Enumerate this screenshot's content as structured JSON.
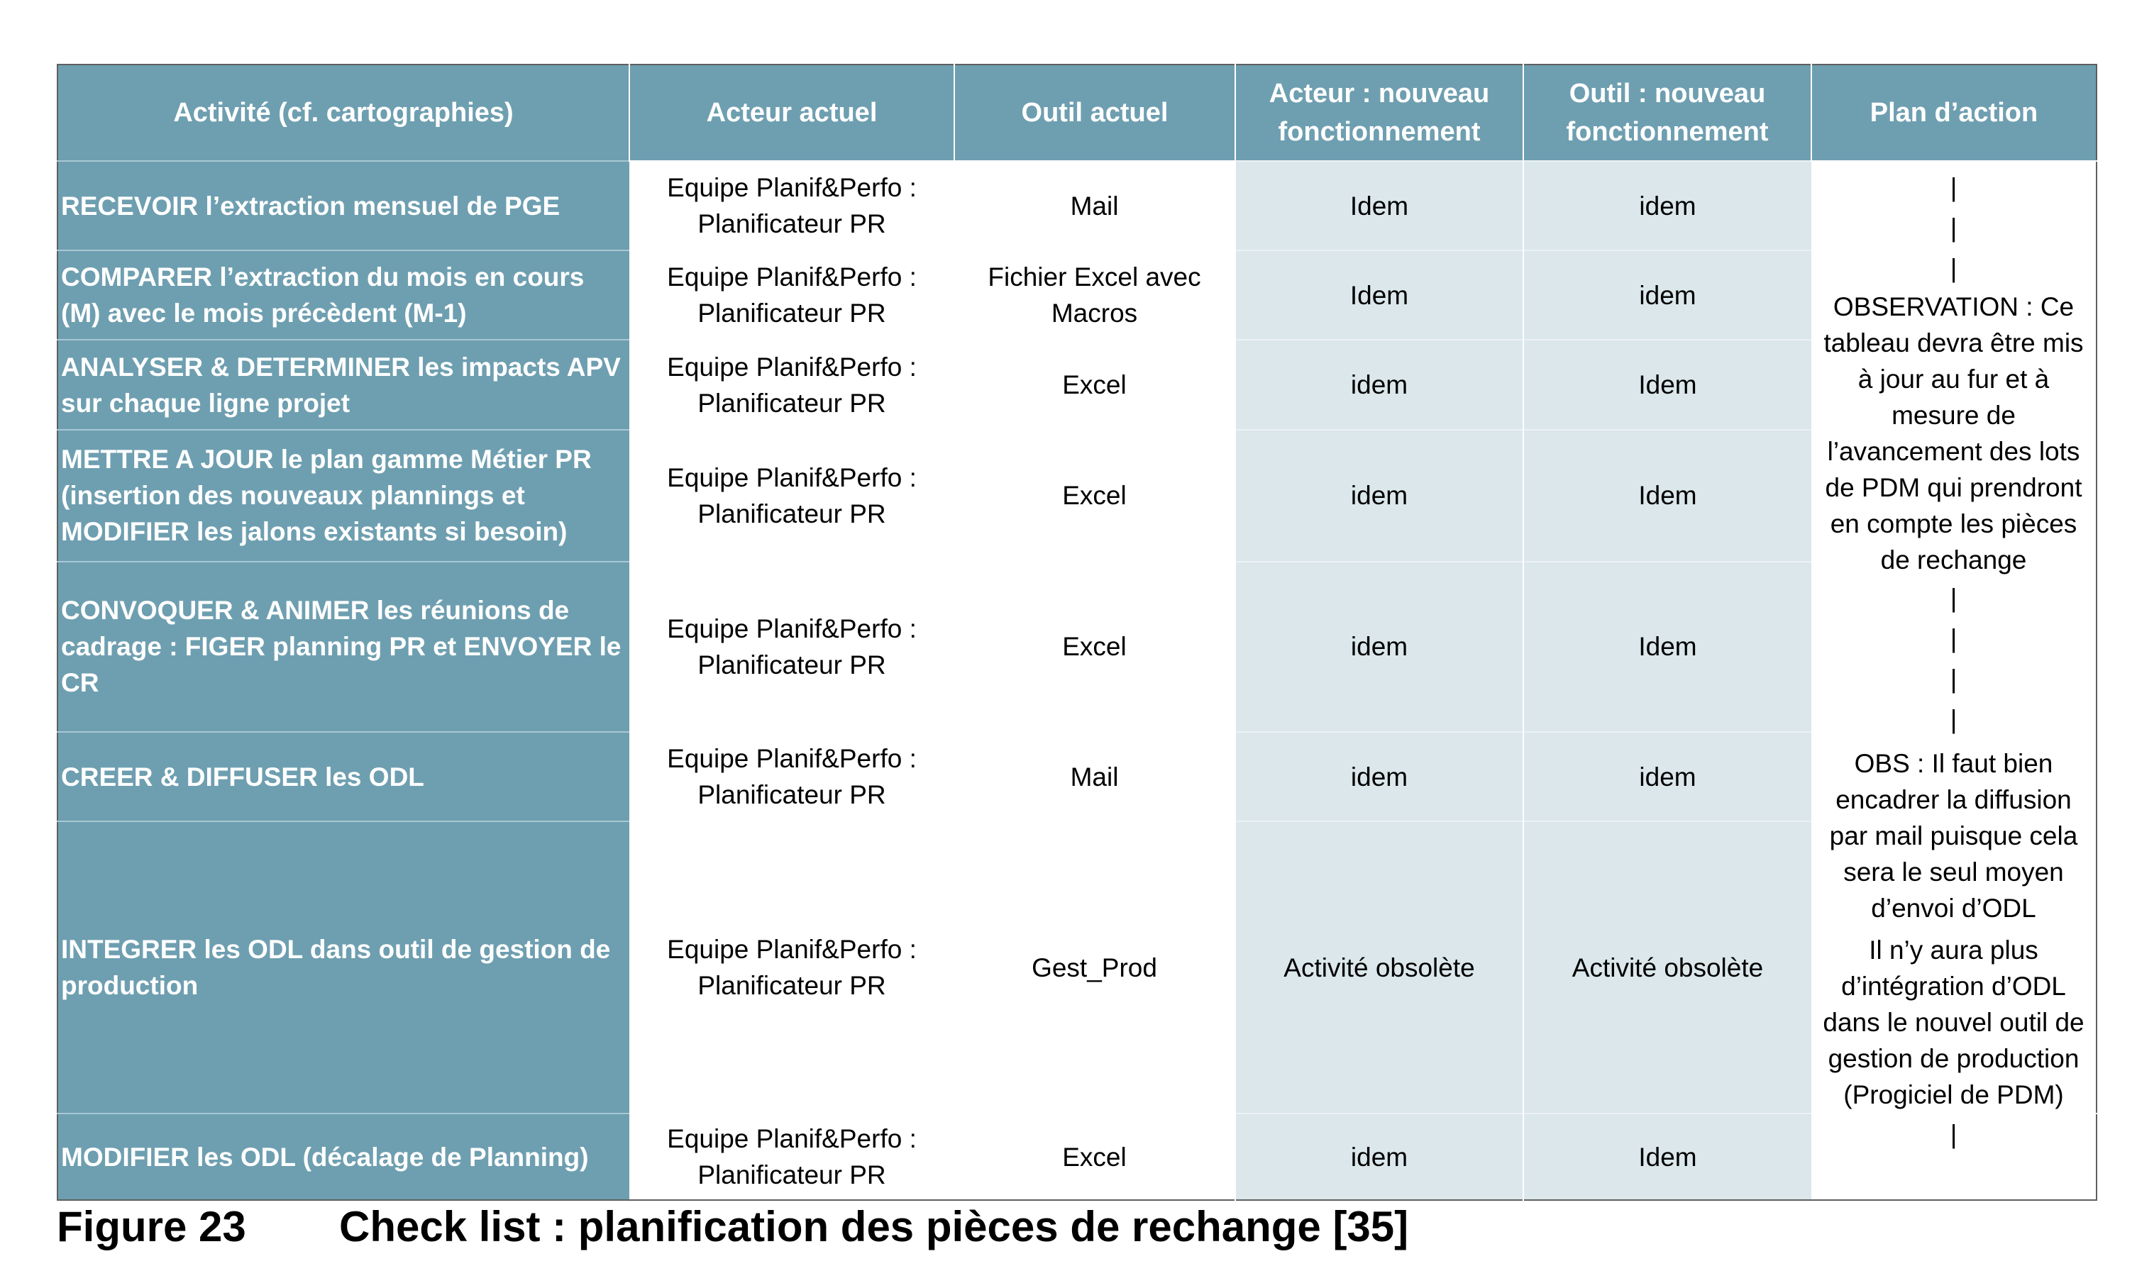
{
  "table": {
    "headers": [
      "Activité  (cf. cartographies)",
      "Acteur  actuel",
      "Outil  actuel",
      "Acteur  : nouveau fonctionnement",
      "Outil  : nouveau fonctionnement",
      "Plan d’action"
    ],
    "rows": [
      {
        "activity": "RECEVOIR l’extraction mensuel de PGE",
        "actor": "Equipe Planif&Perfo : Planificateur PR",
        "tool": "Mail",
        "new_actor": "Idem",
        "new_tool": "idem"
      },
      {
        "activity": "COMPARER l’extraction du mois en cours (M) avec le mois précèdent (M-1)",
        "actor": "Equipe Planif&Perfo : Planificateur PR",
        "tool": "Fichier Excel avec Macros",
        "new_actor": "Idem",
        "new_tool": "idem"
      },
      {
        "activity": "ANALYSER & DETERMINER les impacts APV sur chaque ligne projet",
        "actor": "Equipe Planif&Perfo : Planificateur PR",
        "tool": "Excel",
        "new_actor": "idem",
        "new_tool": "Idem"
      },
      {
        "activity": "METTRE A JOUR le plan gamme Métier PR (insertion des nouveaux plannings et MODIFIER les jalons existants si besoin)",
        "actor": "Equipe Planif&Perfo : Planificateur PR",
        "tool": "Excel",
        "new_actor": "idem",
        "new_tool": "Idem"
      },
      {
        "activity": "CONVOQUER & ANIMER les réunions de cadrage : FIGER planning PR et ENVOYER le CR",
        "actor": "Equipe Planif&Perfo : Planificateur PR",
        "tool": "Excel",
        "new_actor": "idem",
        "new_tool": "Idem"
      },
      {
        "activity": "CREER & DIFFUSER les ODL",
        "actor": "Equipe Planif&Perfo : Planificateur PR",
        "tool": "Mail",
        "new_actor": "idem",
        "new_tool": "idem"
      },
      {
        "activity": "INTEGRER les ODL dans outil de gestion de production",
        "actor": "Equipe Planif&Perfo : Planificateur PR",
        "tool": "Gest_Prod",
        "new_actor": "Activité obsolète",
        "new_tool": "Activité obsolète"
      },
      {
        "activity": "MODIFIER les ODL (décalage de Planning)",
        "actor": "Equipe Planif&Perfo : Planificateur PR",
        "tool": "Excel",
        "new_actor": "idem",
        "new_tool": "Idem"
      }
    ],
    "plan": {
      "pipe": "|",
      "observation_1": "OBSERVATION : Ce tableau devra être mis à jour au fur et à mesure de l’avancement des lots de PDM qui prendront en compte les pièces de rechange",
      "observation_2": "OBS : Il faut bien encadrer la diffusion par mail puisque cela sera le seul moyen d’envoi d’ODL",
      "observation_3": "Il n’y aura plus d’intégration d’ODL dans le nouvel outil de gestion de production (Progiciel de PDM)"
    }
  },
  "caption": {
    "figure_number": "Figure 23",
    "title": "Check list : planification des pièces de rechange [35]"
  }
}
